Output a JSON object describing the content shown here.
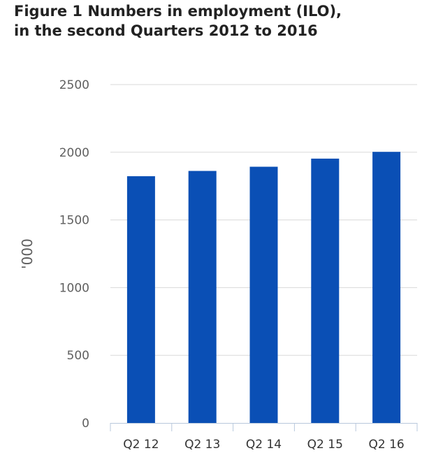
{
  "chart_data": {
    "type": "bar",
    "title": "Figure 1 Numbers in employment (ILO), in the second Quarters 2012 to 2016",
    "categories": [
      "Q2 12",
      "Q2 13",
      "Q2 14",
      "Q2 15",
      "Q2 16"
    ],
    "values": [
      1823,
      1862,
      1893,
      1953,
      2003
    ],
    "xlabel": "",
    "ylabel": "'000",
    "ylim": [
      0,
      2500
    ],
    "yticks": [
      0,
      500,
      1000,
      1500,
      2000,
      2500
    ],
    "grid": true,
    "legend": "none",
    "colors": {
      "bar": "#0a4fb5",
      "grid": "#d9d9d9",
      "axis": "#b8c8dc"
    }
  }
}
